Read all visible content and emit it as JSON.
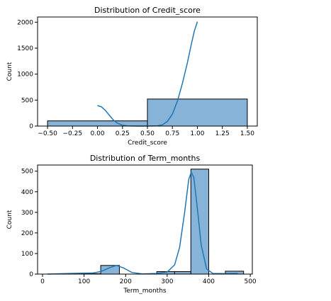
{
  "chart_data": [
    {
      "type": "bar",
      "title": "Distribution of Credit_score",
      "xlabel": "Credit_score",
      "ylabel": "Count",
      "xlim": [
        -0.6,
        1.6
      ],
      "ylim": [
        0,
        2100
      ],
      "xticks": [
        -0.5,
        -0.25,
        0.0,
        0.25,
        0.5,
        0.75,
        1.0,
        1.25,
        1.5
      ],
      "xtick_labels": [
        "−0.50",
        "−0.25",
        "0.00",
        "0.25",
        "0.50",
        "0.75",
        "1.00",
        "1.25",
        "1.50"
      ],
      "yticks": [
        0,
        500,
        1000,
        1500,
        2000
      ],
      "ytick_labels": [
        "0",
        "500",
        "1000",
        "1500",
        "2000"
      ],
      "bins": [
        {
          "x0": -0.5,
          "x1": 0.5,
          "count": 100
        },
        {
          "x0": 0.5,
          "x1": 1.5,
          "count": 520
        }
      ],
      "kde": [
        {
          "x": 0.0,
          "y": 395
        },
        {
          "x": 0.04,
          "y": 370
        },
        {
          "x": 0.08,
          "y": 300
        },
        {
          "x": 0.12,
          "y": 205
        },
        {
          "x": 0.16,
          "y": 115
        },
        {
          "x": 0.2,
          "y": 55
        },
        {
          "x": 0.25,
          "y": 18
        },
        {
          "x": 0.3,
          "y": 3
        },
        {
          "x": 0.4,
          "y": 0
        },
        {
          "x": 0.5,
          "y": 0
        },
        {
          "x": 0.6,
          "y": 5
        },
        {
          "x": 0.65,
          "y": 25
        },
        {
          "x": 0.7,
          "y": 90
        },
        {
          "x": 0.75,
          "y": 230
        },
        {
          "x": 0.8,
          "y": 480
        },
        {
          "x": 0.85,
          "y": 820
        },
        {
          "x": 0.9,
          "y": 1220
        },
        {
          "x": 0.94,
          "y": 1580
        },
        {
          "x": 0.97,
          "y": 1830
        },
        {
          "x": 1.0,
          "y": 2010
        }
      ],
      "bar_color": "#86b3d7",
      "line_color": "#1f77b4"
    },
    {
      "type": "bar",
      "title": "Distribution of Term_months",
      "xlabel": "Term_months",
      "ylabel": "Count",
      "xlim": [
        -12,
        505
      ],
      "ylim": [
        0,
        530
      ],
      "xticks": [
        0,
        100,
        200,
        300,
        400,
        500
      ],
      "xtick_labels": [
        "0",
        "100",
        "200",
        "300",
        "400",
        "500"
      ],
      "yticks": [
        0,
        100,
        200,
        300,
        400,
        500
      ],
      "ytick_labels": [
        "0",
        "100",
        "200",
        "300",
        "400",
        "500"
      ],
      "bins": [
        {
          "x0": 12,
          "x1": 58,
          "count": 0
        },
        {
          "x0": 58,
          "x1": 104,
          "count": 3
        },
        {
          "x0": 104,
          "x1": 140,
          "count": 2
        },
        {
          "x0": 140,
          "x1": 185,
          "count": 42
        },
        {
          "x0": 185,
          "x1": 275,
          "count": 0
        },
        {
          "x0": 275,
          "x1": 318,
          "count": 12
        },
        {
          "x0": 318,
          "x1": 357,
          "count": 12
        },
        {
          "x0": 357,
          "x1": 400,
          "count": 510
        },
        {
          "x0": 400,
          "x1": 440,
          "count": 0
        },
        {
          "x0": 440,
          "x1": 484,
          "count": 14
        }
      ],
      "kde": [
        {
          "x": 12,
          "y": 0
        },
        {
          "x": 50,
          "y": 2
        },
        {
          "x": 90,
          "y": 4
        },
        {
          "x": 120,
          "y": 5
        },
        {
          "x": 140,
          "y": 12
        },
        {
          "x": 160,
          "y": 30
        },
        {
          "x": 178,
          "y": 42
        },
        {
          "x": 195,
          "y": 30
        },
        {
          "x": 215,
          "y": 8
        },
        {
          "x": 240,
          "y": 1
        },
        {
          "x": 275,
          "y": 3
        },
        {
          "x": 300,
          "y": 10
        },
        {
          "x": 318,
          "y": 45
        },
        {
          "x": 330,
          "y": 130
        },
        {
          "x": 342,
          "y": 300
        },
        {
          "x": 352,
          "y": 460
        },
        {
          "x": 358,
          "y": 495
        },
        {
          "x": 364,
          "y": 470
        },
        {
          "x": 372,
          "y": 330
        },
        {
          "x": 382,
          "y": 140
        },
        {
          "x": 395,
          "y": 25
        },
        {
          "x": 410,
          "y": 3
        },
        {
          "x": 440,
          "y": 2
        },
        {
          "x": 470,
          "y": 3
        }
      ],
      "bar_color": "#86b3d7",
      "line_color": "#1f77b4"
    }
  ]
}
